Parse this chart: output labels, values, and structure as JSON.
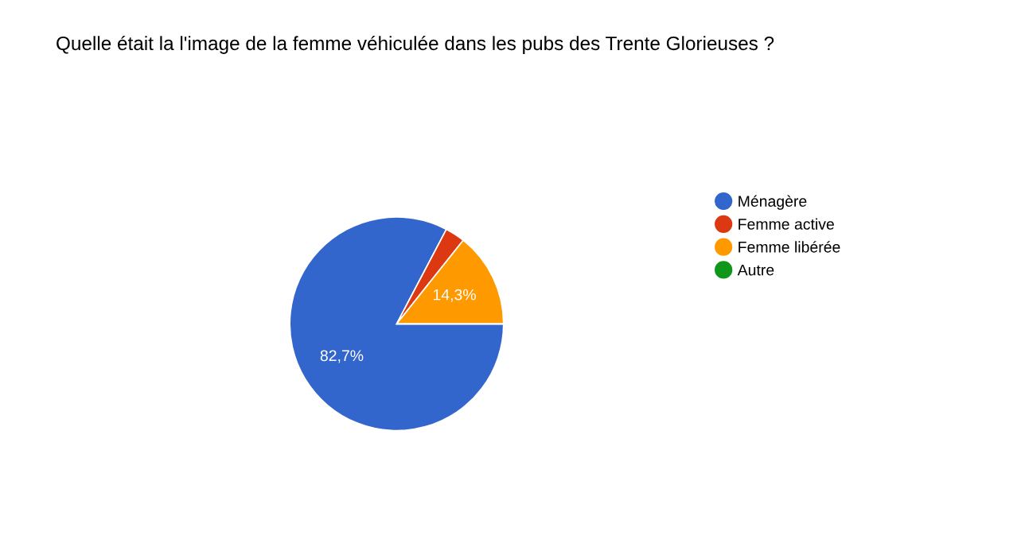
{
  "chart_data": {
    "type": "pie",
    "title": "Quelle était la l'image de la femme véhiculée dans les pubs des Trente Glorieuses ?",
    "categories": [
      "Ménagère",
      "Femme active",
      "Femme libérée",
      "Autre"
    ],
    "values": [
      82.7,
      3.0,
      14.3,
      0
    ],
    "colors": [
      "#3366cc",
      "#dc3912",
      "#ff9900",
      "#109618"
    ],
    "value_labels": [
      "82,7%",
      null,
      "14,3%",
      null
    ],
    "legend": "right"
  }
}
